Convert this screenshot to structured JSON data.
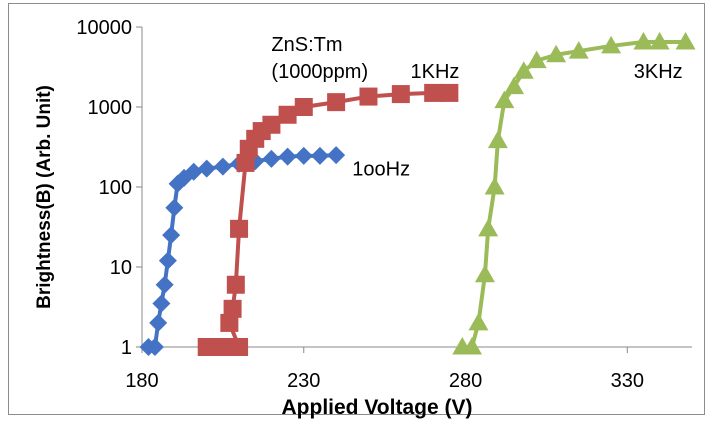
{
  "chart_data": {
    "type": "line",
    "title": "",
    "xlabel": "Applied Voltage (V)",
    "ylabel": "Brightness(B) (Arb. Unit)",
    "xlim": [
      180,
      350
    ],
    "ylim": [
      1,
      10000
    ],
    "yscale": "log",
    "x_ticks": [
      180,
      230,
      280,
      330
    ],
    "x_tick_labels": [
      "180",
      "230",
      "280",
      "330"
    ],
    "y_ticks": [
      1,
      10,
      100,
      1000,
      10000
    ],
    "y_tick_labels": [
      "1",
      "10",
      "100",
      "1000",
      "10000"
    ],
    "grid": false,
    "annotations": [
      {
        "text": "ZnS:Tm",
        "x": 220,
        "y": 5000
      },
      {
        "text": "(1000ppm)",
        "x": 220,
        "y": 2300
      },
      {
        "text": "1KHz",
        "x": 263,
        "y": 2300
      },
      {
        "text": "3KHz",
        "x": 332,
        "y": 2300
      },
      {
        "text": "1ooHz",
        "x": 245,
        "y": 140
      }
    ],
    "series": [
      {
        "name": "1ooHz",
        "color": "#4472c4",
        "marker": "diamond",
        "points": [
          [
            182,
            1
          ],
          [
            184,
            1
          ],
          [
            185,
            2
          ],
          [
            186,
            3.5
          ],
          [
            187,
            6
          ],
          [
            188,
            12
          ],
          [
            189,
            25
          ],
          [
            190,
            55
          ],
          [
            191,
            110
          ],
          [
            193,
            130
          ],
          [
            196,
            155
          ],
          [
            200,
            170
          ],
          [
            205,
            180
          ],
          [
            210,
            195
          ],
          [
            215,
            210
          ],
          [
            220,
            225
          ],
          [
            225,
            240
          ],
          [
            230,
            245
          ],
          [
            235,
            245
          ],
          [
            240,
            250
          ]
        ]
      },
      {
        "name": "1KHz",
        "color": "#c0504d",
        "marker": "square",
        "points": [
          [
            200,
            1
          ],
          [
            205,
            1
          ],
          [
            210,
            1
          ],
          [
            207,
            2
          ],
          [
            208,
            3
          ],
          [
            209,
            6
          ],
          [
            210,
            30
          ],
          [
            212,
            200
          ],
          [
            213,
            300
          ],
          [
            215,
            400
          ],
          [
            217,
            500
          ],
          [
            220,
            600
          ],
          [
            225,
            800
          ],
          [
            230,
            1000
          ],
          [
            240,
            1150
          ],
          [
            250,
            1350
          ],
          [
            260,
            1450
          ],
          [
            270,
            1500
          ],
          [
            275,
            1500
          ]
        ]
      },
      {
        "name": "3KHz",
        "color": "#9bbb59",
        "marker": "triangle",
        "points": [
          [
            279,
            1
          ],
          [
            282,
            1
          ],
          [
            284,
            2
          ],
          [
            286,
            8
          ],
          [
            287,
            30
          ],
          [
            289,
            100
          ],
          [
            290,
            380
          ],
          [
            292,
            1200
          ],
          [
            295,
            1800
          ],
          [
            298,
            2800
          ],
          [
            302,
            3800
          ],
          [
            308,
            4500
          ],
          [
            315,
            5000
          ],
          [
            325,
            5800
          ],
          [
            335,
            6500
          ],
          [
            340,
            6500
          ],
          [
            348,
            6500
          ]
        ]
      }
    ]
  }
}
